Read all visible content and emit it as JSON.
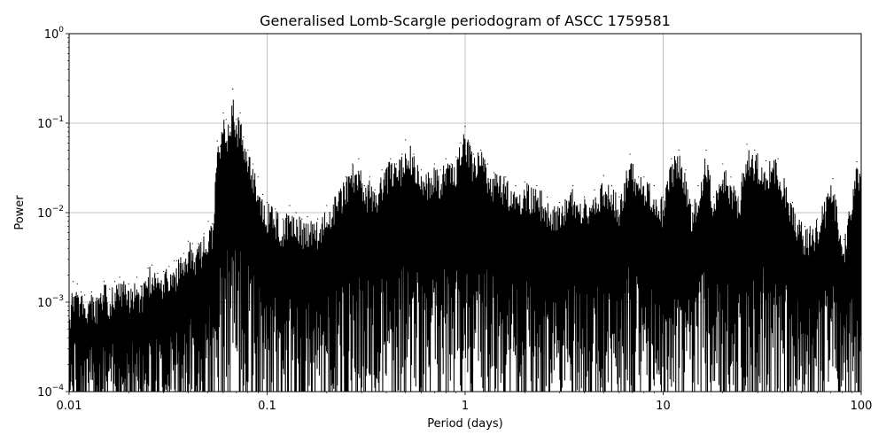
{
  "chart_data": {
    "type": "line",
    "title": "Generalised Lomb-Scargle periodogram of ASCC 1759581",
    "xlabel": "Period (days)",
    "ylabel": "Power",
    "xscale": "log",
    "yscale": "log",
    "xlim": [
      0.01,
      100
    ],
    "ylim": [
      0.0001,
      1
    ],
    "grid": true,
    "line_color": "#000000",
    "x_ticks": [
      {
        "value": 0.01,
        "label": "0.01"
      },
      {
        "value": 0.1,
        "label": "0.1"
      },
      {
        "value": 1,
        "label": "1"
      },
      {
        "value": 10,
        "label": "10"
      },
      {
        "value": 100,
        "label": "100"
      }
    ],
    "y_ticks": [
      {
        "value": 0.0001,
        "base": "10",
        "exp": "−4"
      },
      {
        "value": 0.001,
        "base": "10",
        "exp": "−3"
      },
      {
        "value": 0.01,
        "base": "10",
        "exp": "−2"
      },
      {
        "value": 0.1,
        "base": "10",
        "exp": "−1"
      },
      {
        "value": 1,
        "base": "10",
        "exp": "0"
      }
    ],
    "series": [
      {
        "points": [
          [
            0.01,
            0.0008
          ],
          [
            0.0105,
            0.0017
          ],
          [
            0.011,
            0.0016
          ],
          [
            0.0115,
            0.0013
          ],
          [
            0.012,
            0.0012
          ],
          [
            0.013,
            0.0013
          ],
          [
            0.014,
            0.0011
          ],
          [
            0.015,
            0.0017
          ],
          [
            0.016,
            0.0014
          ],
          [
            0.017,
            0.0017
          ],
          [
            0.018,
            0.0019
          ],
          [
            0.02,
            0.0016
          ],
          [
            0.022,
            0.0019
          ],
          [
            0.023,
            0.0015
          ],
          [
            0.025,
            0.0024
          ],
          [
            0.0262,
            0.0026
          ],
          [
            0.028,
            0.0021
          ],
          [
            0.03,
            0.0022
          ],
          [
            0.032,
            0.0025
          ],
          [
            0.034,
            0.0029
          ],
          [
            0.035,
            0.0029
          ],
          [
            0.038,
            0.0035
          ],
          [
            0.04,
            0.0048
          ],
          [
            0.042,
            0.0045
          ],
          [
            0.045,
            0.0045
          ],
          [
            0.048,
            0.0058
          ],
          [
            0.0505,
            0.008
          ],
          [
            0.053,
            0.0075
          ],
          [
            0.056,
            0.063
          ],
          [
            0.058,
            0.055
          ],
          [
            0.06,
            0.13
          ],
          [
            0.062,
            0.11
          ],
          [
            0.065,
            0.09
          ],
          [
            0.067,
            0.24
          ],
          [
            0.07,
            0.11
          ],
          [
            0.073,
            0.13
          ],
          [
            0.076,
            0.07
          ],
          [
            0.08,
            0.05
          ],
          [
            0.085,
            0.035
          ],
          [
            0.09,
            0.025
          ],
          [
            0.095,
            0.016
          ],
          [
            0.1,
            0.013
          ],
          [
            0.11,
            0.011
          ],
          [
            0.12,
            0.0085
          ],
          [
            0.13,
            0.012
          ],
          [
            0.14,
            0.01
          ],
          [
            0.15,
            0.0085
          ],
          [
            0.16,
            0.009
          ],
          [
            0.18,
            0.0085
          ],
          [
            0.2,
            0.012
          ],
          [
            0.22,
            0.015
          ],
          [
            0.25,
            0.025
          ],
          [
            0.27,
            0.035
          ],
          [
            0.29,
            0.04
          ],
          [
            0.31,
            0.02
          ],
          [
            0.33,
            0.025
          ],
          [
            0.35,
            0.018
          ],
          [
            0.38,
            0.03
          ],
          [
            0.42,
            0.04
          ],
          [
            0.45,
            0.035
          ],
          [
            0.48,
            0.045
          ],
          [
            0.5,
            0.065
          ],
          [
            0.53,
            0.055
          ],
          [
            0.55,
            0.045
          ],
          [
            0.6,
            0.03
          ],
          [
            0.65,
            0.028
          ],
          [
            0.7,
            0.035
          ],
          [
            0.75,
            0.03
          ],
          [
            0.8,
            0.04
          ],
          [
            0.85,
            0.035
          ],
          [
            0.9,
            0.042
          ],
          [
            0.95,
            0.06
          ],
          [
            1.0,
            0.092
          ],
          [
            1.05,
            0.06
          ],
          [
            1.1,
            0.045
          ],
          [
            1.2,
            0.05
          ],
          [
            1.3,
            0.035
          ],
          [
            1.4,
            0.028
          ],
          [
            1.6,
            0.025
          ],
          [
            1.8,
            0.02
          ],
          [
            2.0,
            0.022
          ],
          [
            2.3,
            0.02
          ],
          [
            2.6,
            0.015
          ],
          [
            3.0,
            0.013
          ],
          [
            3.5,
            0.02
          ],
          [
            4.0,
            0.015
          ],
          [
            4.5,
            0.018
          ],
          [
            5.0,
            0.026
          ],
          [
            5.5,
            0.02
          ],
          [
            6.0,
            0.015
          ],
          [
            6.8,
            0.045
          ],
          [
            7.5,
            0.025
          ],
          [
            8.0,
            0.025
          ],
          [
            9.0,
            0.02
          ],
          [
            10.0,
            0.015
          ],
          [
            11.0,
            0.04
          ],
          [
            12.0,
            0.05
          ],
          [
            13.0,
            0.03
          ],
          [
            14.0,
            0.012
          ],
          [
            15.0,
            0.02
          ],
          [
            16.5,
            0.05
          ],
          [
            18.0,
            0.015
          ],
          [
            20.0,
            0.035
          ],
          [
            22.0,
            0.025
          ],
          [
            24.0,
            0.015
          ],
          [
            26.5,
            0.058
          ],
          [
            29.0,
            0.05
          ],
          [
            33.0,
            0.038
          ],
          [
            38.0,
            0.04
          ],
          [
            45.0,
            0.013
          ],
          [
            52.0,
            0.007
          ],
          [
            60.0,
            0.0085
          ],
          [
            72.0,
            0.024
          ],
          [
            82.0,
            0.005
          ],
          [
            95.0,
            0.037
          ],
          [
            100.0,
            0.036
          ]
        ]
      }
    ]
  }
}
